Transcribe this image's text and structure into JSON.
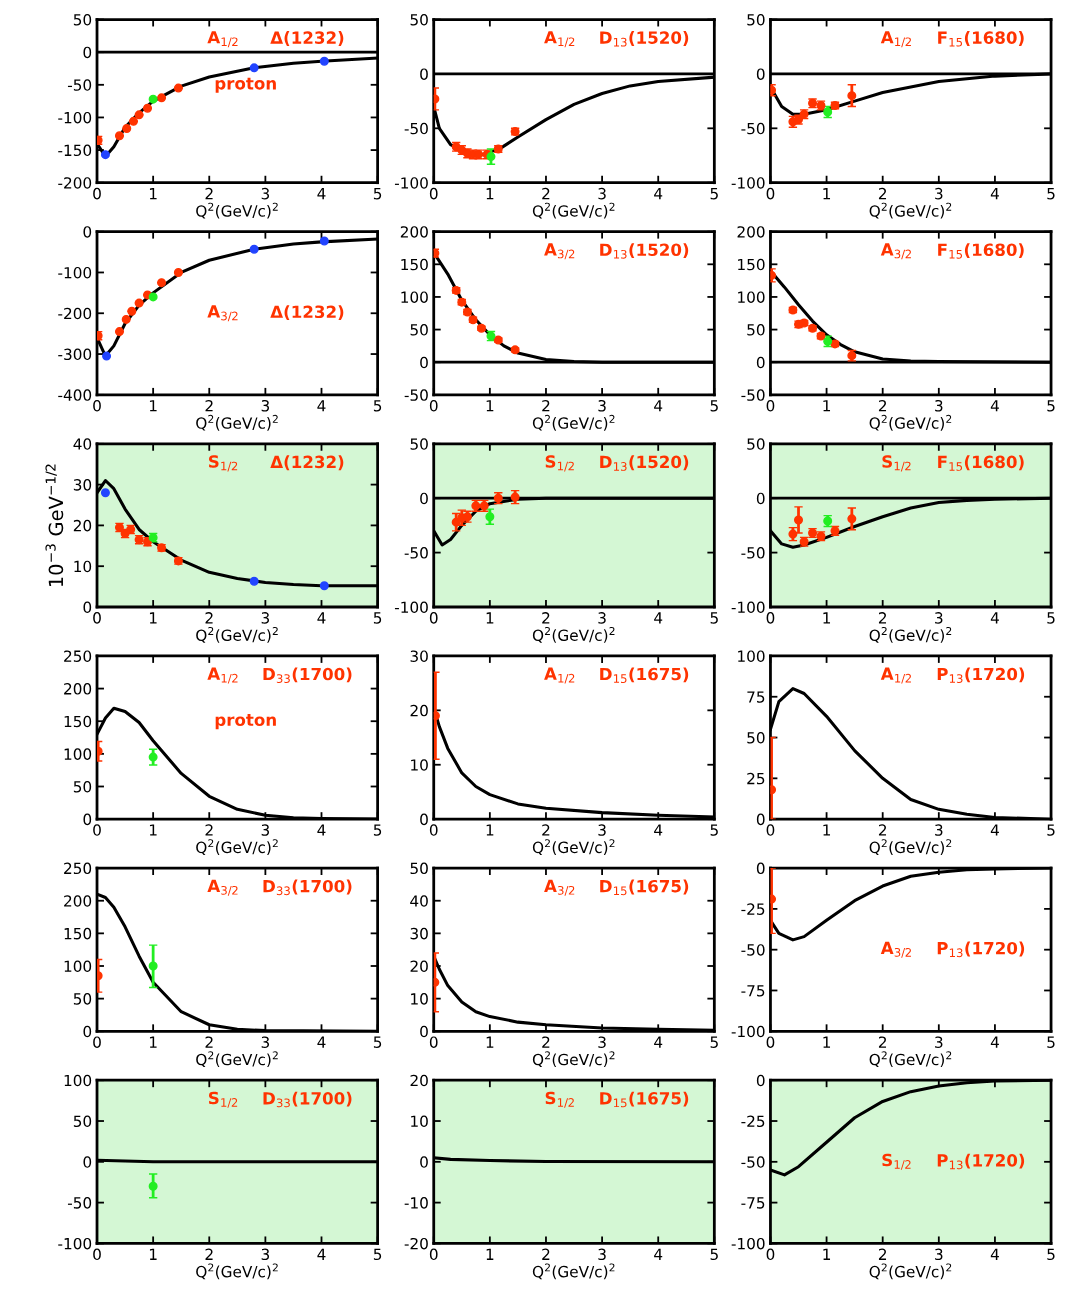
{
  "chart_data": [
    {
      "type": "line",
      "xlabel": "Q$^{2}$(GeV/c)$^{2}$",
      "xlim": [
        0,
        5
      ],
      "xticks": [
        0,
        1,
        2,
        3,
        4,
        5
      ],
      "ylim": [
        -200,
        50
      ],
      "yticks": [
        -200,
        -150,
        -100,
        -50,
        0,
        50
      ],
      "annotations": [
        "A$_{1/2}$",
        "Δ(1232)",
        "proton"
      ],
      "ref_lines": [
        {
          "axis": "y",
          "value": 0,
          "color": "#000000"
        }
      ],
      "series": [
        {
          "type": "line",
          "color": "#000000",
          "x": [
            0,
            0.15,
            0.3,
            0.5,
            0.75,
            1,
            1.5,
            2,
            2.8,
            3.5,
            4,
            5
          ],
          "values": [
            -140,
            -160,
            -145,
            -115,
            -93,
            -75,
            -52,
            -38,
            -24,
            -17,
            -14,
            -9
          ]
        },
        {
          "type": "scatter",
          "color": "#ff3300",
          "x": [
            0.02,
            0.4,
            0.53,
            0.65,
            0.75,
            0.9,
            1.15,
            1.45
          ],
          "values": [
            -135,
            -128,
            -117,
            -106,
            -96,
            -86,
            -70,
            -55
          ],
          "errors": [
            6,
            null,
            null,
            null,
            null,
            null,
            null,
            null
          ]
        },
        {
          "type": "scatter",
          "color": "#22ee22",
          "x": [
            1.0
          ],
          "values": [
            -72
          ]
        },
        {
          "type": "scatter",
          "color": "#2244ff",
          "x": [
            0.15,
            2.8,
            4.05
          ],
          "values": [
            -157,
            -24,
            -14
          ]
        }
      ]
    },
    {
      "type": "line",
      "xlabel": "Q$^{2}$(GeV/c)$^{2}$",
      "xlim": [
        0,
        5
      ],
      "xticks": [
        0,
        1,
        2,
        3,
        4,
        5
      ],
      "ylim": [
        -100,
        50
      ],
      "yticks": [
        -100,
        -50,
        0,
        50
      ],
      "annotations": [
        "A$_{1/2}$",
        "D$_{13}$(1520)"
      ],
      "ref_lines": [
        {
          "axis": "y",
          "value": 0,
          "color": "#000000"
        }
      ],
      "series": [
        {
          "type": "line",
          "color": "#000000",
          "x": [
            0,
            0.1,
            0.3,
            0.6,
            0.9,
            1.2,
            1.5,
            2,
            2.5,
            3,
            3.5,
            4,
            5
          ],
          "values": [
            -30,
            -50,
            -65,
            -73,
            -74,
            -68,
            -58,
            -42,
            -28,
            -18,
            -11,
            -7,
            -3
          ]
        },
        {
          "type": "scatter",
          "color": "#ff3300",
          "x": [
            0.02,
            0.4,
            0.5,
            0.6,
            0.7,
            0.8,
            0.95,
            1.15,
            1.45
          ],
          "values": [
            -23,
            -67,
            -70,
            -73,
            -74,
            -74,
            -74,
            -69,
            -53
          ],
          "errors": [
            10,
            4,
            4,
            4,
            4,
            4,
            4,
            3,
            3
          ]
        },
        {
          "type": "scatter",
          "color": "#22ee22",
          "x": [
            1.02
          ],
          "values": [
            -76
          ],
          "errors": [
            7
          ]
        }
      ]
    },
    {
      "type": "line",
      "xlabel": "Q$^{2}$(GeV/c)$^{2}$",
      "xlim": [
        0,
        5
      ],
      "xticks": [
        0,
        1,
        2,
        3,
        4,
        5
      ],
      "ylim": [
        -100,
        50
      ],
      "yticks": [
        -100,
        -50,
        0,
        50
      ],
      "annotations": [
        "A$_{1/2}$",
        "F$_{15}$(1680)"
      ],
      "ref_lines": [
        {
          "axis": "y",
          "value": 0,
          "color": "#000000"
        }
      ],
      "series": [
        {
          "type": "line",
          "color": "#000000",
          "x": [
            0,
            0.2,
            0.4,
            0.6,
            1,
            1.5,
            2,
            3,
            4,
            5
          ],
          "values": [
            -12,
            -30,
            -37,
            -37,
            -33,
            -25,
            -17,
            -7,
            -2,
            0
          ]
        },
        {
          "type": "scatter",
          "color": "#ff3300",
          "x": [
            0.02,
            0.4,
            0.5,
            0.6,
            0.75,
            0.9,
            1.15,
            1.45
          ],
          "values": [
            -15,
            -44,
            -42,
            -37,
            -27,
            -29,
            -29,
            -20
          ],
          "errors": [
            5,
            5,
            4,
            4,
            4,
            4,
            3,
            10
          ]
        },
        {
          "type": "scatter",
          "color": "#22ee22",
          "x": [
            1.02
          ],
          "values": [
            -35
          ],
          "errors": [
            5
          ]
        }
      ]
    },
    {
      "type": "line",
      "xlabel": "Q$^{2}$(GeV/c)$^{2}$",
      "xlim": [
        0,
        5
      ],
      "xticks": [
        0,
        1,
        2,
        3,
        4,
        5
      ],
      "ylim": [
        -400,
        0
      ],
      "yticks": [
        -400,
        -300,
        -200,
        -100,
        0
      ],
      "annotations": [
        "A$_{3/2}$",
        "Δ(1232)"
      ],
      "series": [
        {
          "type": "line",
          "color": "#000000",
          "x": [
            0,
            0.15,
            0.3,
            0.5,
            0.75,
            1,
            1.5,
            2,
            2.8,
            3.5,
            4,
            5
          ],
          "values": [
            -260,
            -305,
            -280,
            -225,
            -180,
            -150,
            -100,
            -70,
            -43,
            -30,
            -25,
            -18
          ]
        },
        {
          "type": "scatter",
          "color": "#ff3300",
          "x": [
            0.02,
            0.4,
            0.52,
            0.62,
            0.75,
            0.9,
            1.15,
            1.45
          ],
          "values": [
            -255,
            -245,
            -215,
            -195,
            -175,
            -155,
            -125,
            -100
          ],
          "errors": [
            10,
            null,
            null,
            null,
            null,
            null,
            null,
            null
          ]
        },
        {
          "type": "scatter",
          "color": "#22ee22",
          "x": [
            1.0
          ],
          "values": [
            -160
          ]
        },
        {
          "type": "scatter",
          "color": "#2244ff",
          "x": [
            0.17,
            2.8,
            4.05
          ],
          "values": [
            -305,
            -43,
            -23
          ]
        }
      ]
    },
    {
      "type": "line",
      "xlabel": "Q$^{2}$(GeV/c)$^{2}$",
      "xlim": [
        0,
        5
      ],
      "xticks": [
        0,
        1,
        2,
        3,
        4,
        5
      ],
      "ylim": [
        -50,
        200
      ],
      "yticks": [
        -50,
        0,
        50,
        100,
        150,
        200
      ],
      "annotations": [
        "A$_{3/2}$",
        "D$_{13}$(1520)"
      ],
      "ref_lines": [
        {
          "axis": "y",
          "value": 0,
          "color": "#000000"
        }
      ],
      "series": [
        {
          "type": "line",
          "color": "#000000",
          "x": [
            0,
            0.25,
            0.5,
            0.75,
            1,
            1.25,
            1.5,
            2,
            2.5,
            3,
            5
          ],
          "values": [
            168,
            135,
            95,
            65,
            42,
            25,
            14,
            4,
            1,
            0,
            0
          ]
        },
        {
          "type": "scatter",
          "color": "#ff3300",
          "x": [
            0.02,
            0.4,
            0.5,
            0.6,
            0.7,
            0.85,
            1.15,
            1.45
          ],
          "values": [
            167,
            110,
            92,
            77,
            65,
            52,
            34,
            19
          ],
          "errors": [
            6,
            4,
            4,
            4,
            4,
            3,
            3,
            3
          ]
        },
        {
          "type": "scatter",
          "color": "#22ee22",
          "x": [
            1.02
          ],
          "values": [
            40
          ],
          "errors": [
            7
          ]
        }
      ]
    },
    {
      "type": "line",
      "xlabel": "Q$^{2}$(GeV/c)$^{2}$",
      "xlim": [
        0,
        5
      ],
      "xticks": [
        0,
        1,
        2,
        3,
        4,
        5
      ],
      "ylim": [
        -50,
        200
      ],
      "yticks": [
        -50,
        0,
        50,
        100,
        150,
        200
      ],
      "annotations": [
        "A$_{3/2}$",
        "F$_{15}$(1680)"
      ],
      "ref_lines": [
        {
          "axis": "y",
          "value": 0,
          "color": "#000000"
        }
      ],
      "series": [
        {
          "type": "line",
          "color": "#000000",
          "x": [
            0,
            0.25,
            0.5,
            0.75,
            1,
            1.25,
            1.5,
            2,
            2.5,
            3,
            5
          ],
          "values": [
            140,
            115,
            88,
            63,
            42,
            27,
            16,
            5,
            2,
            1,
            0
          ]
        },
        {
          "type": "scatter",
          "color": "#ff3300",
          "x": [
            0.02,
            0.4,
            0.5,
            0.6,
            0.75,
            0.9,
            1.15,
            1.45
          ],
          "values": [
            133,
            80,
            58,
            60,
            52,
            40,
            28,
            10
          ],
          "errors": [
            10,
            4,
            5,
            4,
            4,
            4,
            4,
            8
          ]
        },
        {
          "type": "scatter",
          "color": "#22ee22",
          "x": [
            1.02
          ],
          "values": [
            32
          ],
          "errors": [
            8
          ]
        }
      ]
    },
    {
      "type": "line",
      "xlabel": "Q$^{2}$(GeV/c)$^{2}$",
      "ylabel": "10$^{−3}$ GeV$^{−1/2}$",
      "xlim": [
        0,
        5
      ],
      "xticks": [
        0,
        1,
        2,
        3,
        4,
        5
      ],
      "ylim": [
        0,
        40
      ],
      "yticks": [
        0,
        10,
        20,
        30,
        40
      ],
      "annotations": [
        "S$_{1/2}$",
        "Δ(1232)"
      ],
      "bands": [
        {
          "axis": "y",
          "from": 0,
          "to": 40,
          "color": "#d4f7d4"
        }
      ],
      "series": [
        {
          "type": "line",
          "color": "#000000",
          "x": [
            0,
            0.15,
            0.3,
            0.5,
            0.75,
            1,
            1.5,
            2,
            2.5,
            3,
            3.5,
            4,
            5
          ],
          "values": [
            28,
            31,
            29,
            24,
            19,
            16,
            11.5,
            8.5,
            7,
            6,
            5.5,
            5.2,
            5.2
          ]
        },
        {
          "type": "scatter",
          "color": "#ff3300",
          "x": [
            0.4,
            0.5,
            0.6,
            0.75,
            0.9,
            1.15,
            1.45
          ],
          "values": [
            19.5,
            18,
            19,
            16.5,
            16,
            14.5,
            11.3
          ],
          "errors": [
            1,
            1,
            1,
            1,
            1,
            0.8,
            0.8
          ]
        },
        {
          "type": "scatter",
          "color": "#22ee22",
          "x": [
            1.0
          ],
          "values": [
            17
          ],
          "errors": [
            1
          ]
        },
        {
          "type": "scatter",
          "color": "#2244ff",
          "x": [
            0.15,
            2.8,
            4.05
          ],
          "values": [
            28,
            6.3,
            5.2
          ]
        }
      ]
    },
    {
      "type": "line",
      "xlabel": "Q$^{2}$(GeV/c)$^{2}$",
      "xlim": [
        0,
        5
      ],
      "xticks": [
        0,
        1,
        2,
        3,
        4,
        5
      ],
      "ylim": [
        -100,
        50
      ],
      "yticks": [
        -100,
        -50,
        0,
        50
      ],
      "annotations": [
        "S$_{1/2}$",
        "D$_{13}$(1520)"
      ],
      "bands": [
        {
          "axis": "y",
          "from": -100,
          "to": 50,
          "color": "#d4f7d4"
        }
      ],
      "ref_lines": [
        {
          "axis": "y",
          "value": 0,
          "color": "#000000"
        }
      ],
      "series": [
        {
          "type": "line",
          "color": "#000000",
          "x": [
            0,
            0.15,
            0.3,
            0.5,
            0.75,
            1,
            1.5,
            2,
            5
          ],
          "values": [
            -30,
            -43,
            -38,
            -25,
            -12,
            -5,
            -1,
            0,
            0
          ]
        },
        {
          "type": "scatter",
          "color": "#ff3300",
          "x": [
            0.4,
            0.5,
            0.6,
            0.75,
            0.9,
            1.15,
            1.45
          ],
          "values": [
            -22,
            -18,
            -17,
            -7,
            -7,
            0,
            1
          ],
          "errors": [
            8,
            7,
            5,
            5,
            5,
            5,
            6
          ]
        },
        {
          "type": "scatter",
          "color": "#22ee22",
          "x": [
            1.0
          ],
          "values": [
            -17
          ],
          "errors": [
            7
          ]
        }
      ]
    },
    {
      "type": "line",
      "xlabel": "Q$^{2}$(GeV/c)$^{2}$",
      "xlim": [
        0,
        5
      ],
      "xticks": [
        0,
        1,
        2,
        3,
        4,
        5
      ],
      "ylim": [
        -100,
        50
      ],
      "yticks": [
        -100,
        -50,
        0,
        50
      ],
      "annotations": [
        "S$_{1/2}$",
        "F$_{15}$(1680)"
      ],
      "bands": [
        {
          "axis": "y",
          "from": -100,
          "to": 50,
          "color": "#d4f7d4"
        }
      ],
      "ref_lines": [
        {
          "axis": "y",
          "value": 0,
          "color": "#000000"
        }
      ],
      "series": [
        {
          "type": "line",
          "color": "#000000",
          "x": [
            0,
            0.2,
            0.4,
            0.6,
            1,
            1.5,
            2,
            2.5,
            3,
            3.5,
            4,
            5
          ],
          "values": [
            -30,
            -42,
            -45,
            -43,
            -36,
            -26,
            -17,
            -9,
            -4,
            -2,
            -1,
            0
          ]
        },
        {
          "type": "scatter",
          "color": "#ff3300",
          "x": [
            0.4,
            0.5,
            0.6,
            0.75,
            0.9,
            1.15,
            1.45
          ],
          "values": [
            -33,
            -20,
            -40,
            -32,
            -35,
            -30,
            -19
          ],
          "errors": [
            6,
            12,
            4,
            4,
            4,
            4,
            10
          ]
        },
        {
          "type": "scatter",
          "color": "#22ee22",
          "x": [
            1.02
          ],
          "values": [
            -21
          ],
          "errors": [
            5
          ]
        }
      ]
    },
    {
      "type": "line",
      "xlabel": "Q$^{2}$(GeV/c)$^{2}$",
      "xlim": [
        0,
        5
      ],
      "xticks": [
        0,
        1,
        2,
        3,
        4,
        5
      ],
      "ylim": [
        0,
        250
      ],
      "yticks": [
        0,
        50,
        100,
        150,
        200,
        250
      ],
      "annotations": [
        "A$_{1/2}$",
        "D$_{33}$(1700)",
        "proton"
      ],
      "series": [
        {
          "type": "line",
          "color": "#000000",
          "x": [
            0,
            0.15,
            0.3,
            0.5,
            0.75,
            1,
            1.5,
            2,
            2.5,
            3,
            3.5,
            4,
            5
          ],
          "values": [
            130,
            155,
            170,
            165,
            148,
            120,
            70,
            35,
            15,
            6,
            2,
            1,
            0
          ]
        },
        {
          "type": "scatter",
          "color": "#ff3300",
          "x": [
            0.02
          ],
          "values": [
            104
          ],
          "errors": [
            15
          ]
        },
        {
          "type": "scatter",
          "color": "#22ee22",
          "x": [
            1.0
          ],
          "values": [
            95
          ],
          "errors": [
            12
          ]
        }
      ]
    },
    {
      "type": "line",
      "xlabel": "Q$^{2}$(GeV/c)$^{2}$",
      "xlim": [
        0,
        5
      ],
      "xticks": [
        0,
        1,
        2,
        3,
        4,
        5
      ],
      "ylim": [
        0,
        30
      ],
      "yticks": [
        0,
        10,
        20,
        30
      ],
      "annotations": [
        "A$_{1/2}$",
        "D$_{15}$(1675)"
      ],
      "series": [
        {
          "type": "line",
          "color": "#000000",
          "x": [
            0,
            0.1,
            0.25,
            0.5,
            0.75,
            1,
            1.5,
            2,
            3,
            4,
            5
          ],
          "values": [
            20.5,
            17,
            13,
            8.5,
            6,
            4.5,
            2.8,
            2,
            1.2,
            0.7,
            0.4
          ]
        },
        {
          "type": "scatter",
          "color": "#ff3300",
          "x": [
            0.03
          ],
          "values": [
            19
          ],
          "errors": [
            8
          ]
        }
      ]
    },
    {
      "type": "line",
      "xlabel": "Q$^{2}$(GeV/c)$^{2}$",
      "xlim": [
        0,
        5
      ],
      "xticks": [
        0,
        1,
        2,
        3,
        4,
        5
      ],
      "ylim": [
        0,
        100
      ],
      "yticks": [
        0,
        25,
        50,
        75,
        100
      ],
      "annotations": [
        "A$_{1/2}$",
        "P$_{13}$(1720)"
      ],
      "series": [
        {
          "type": "line",
          "color": "#000000",
          "x": [
            0,
            0.15,
            0.4,
            0.6,
            1,
            1.5,
            2,
            2.5,
            3,
            3.5,
            4,
            5
          ],
          "values": [
            55,
            72,
            80,
            77,
            63,
            42,
            25,
            12,
            6,
            3,
            1,
            0
          ]
        },
        {
          "type": "scatter",
          "color": "#ff3300",
          "x": [
            0.02
          ],
          "values": [
            18
          ],
          "errors": [
            [
              0,
              50
            ]
          ]
        }
      ]
    },
    {
      "type": "line",
      "xlabel": "Q$^{2}$(GeV/c)$^{2}$",
      "xlim": [
        0,
        5
      ],
      "xticks": [
        0,
        1,
        2,
        3,
        4,
        5
      ],
      "ylim": [
        0,
        250
      ],
      "yticks": [
        0,
        50,
        100,
        150,
        200,
        250
      ],
      "annotations": [
        "A$_{3/2}$",
        "D$_{33}$(1700)"
      ],
      "series": [
        {
          "type": "line",
          "color": "#000000",
          "x": [
            0,
            0.15,
            0.3,
            0.5,
            0.75,
            1,
            1.5,
            2,
            2.5,
            3,
            5
          ],
          "values": [
            210,
            205,
            190,
            160,
            115,
            75,
            30,
            10,
            3,
            1,
            0
          ]
        },
        {
          "type": "scatter",
          "color": "#ff3300",
          "x": [
            0.02
          ],
          "values": [
            85
          ],
          "errors": [
            [
              60,
              110
            ]
          ]
        },
        {
          "type": "scatter",
          "color": "#22ee22",
          "x": [
            1.0
          ],
          "values": [
            100
          ],
          "errors": [
            [
              67,
              132
            ]
          ]
        }
      ]
    },
    {
      "type": "line",
      "xlabel": "Q$^{2}$(GeV/c)$^{2}$",
      "xlim": [
        0,
        5
      ],
      "xticks": [
        0,
        1,
        2,
        3,
        4,
        5
      ],
      "ylim": [
        0,
        50
      ],
      "yticks": [
        0,
        10,
        20,
        30,
        40,
        50
      ],
      "annotations": [
        "A$_{3/2}$",
        "D$_{15}$(1675)"
      ],
      "series": [
        {
          "type": "line",
          "color": "#000000",
          "x": [
            0,
            0.1,
            0.25,
            0.5,
            0.75,
            1,
            1.5,
            2,
            3,
            4,
            5
          ],
          "values": [
            23,
            19,
            14,
            9,
            6,
            4.5,
            2.8,
            2,
            1,
            0.6,
            0.3
          ]
        },
        {
          "type": "scatter",
          "color": "#ff3300",
          "x": [
            0.02
          ],
          "values": [
            15
          ],
          "errors": [
            [
              6,
              24
            ]
          ]
        }
      ]
    },
    {
      "type": "line",
      "xlabel": "Q$^{2}$(GeV/c)$^{2}$",
      "xlim": [
        0,
        5
      ],
      "xticks": [
        0,
        1,
        2,
        3,
        4,
        5
      ],
      "ylim": [
        -100,
        0
      ],
      "yticks": [
        -100,
        -75,
        -50,
        -25,
        0
      ],
      "annotations": [
        "A$_{3/2}$",
        "P$_{13}$(1720)"
      ],
      "series": [
        {
          "type": "line",
          "color": "#000000",
          "x": [
            0,
            0.15,
            0.4,
            0.6,
            1,
            1.5,
            2,
            2.5,
            3,
            3.5,
            4,
            5
          ],
          "values": [
            -32,
            -40,
            -44,
            -42,
            -32,
            -20,
            -11,
            -5,
            -2.5,
            -1,
            -0.5,
            0
          ]
        },
        {
          "type": "scatter",
          "color": "#ff3300",
          "x": [
            0.02
          ],
          "values": [
            -19
          ],
          "errors": [
            [
              -40,
              0
            ]
          ]
        }
      ]
    },
    {
      "type": "line",
      "xlabel": "Q$^{2}$(GeV/c)$^{2}$",
      "xlim": [
        0,
        5
      ],
      "xticks": [
        0,
        1,
        2,
        3,
        4,
        5
      ],
      "ylim": [
        -100,
        100
      ],
      "yticks": [
        -100,
        -50,
        0,
        50,
        100
      ],
      "annotations": [
        "S$_{1/2}$",
        "D$_{33}$(1700)"
      ],
      "bands": [
        {
          "axis": "y",
          "from": -100,
          "to": 100,
          "color": "#d4f7d4"
        }
      ],
      "series": [
        {
          "type": "line",
          "color": "#000000",
          "x": [
            0,
            0.5,
            1,
            5
          ],
          "values": [
            2,
            1,
            0,
            0
          ]
        },
        {
          "type": "scatter",
          "color": "#22ee22",
          "x": [
            1.0
          ],
          "values": [
            -30
          ],
          "errors": [
            [
              -44,
              -15
            ]
          ]
        }
      ]
    },
    {
      "type": "line",
      "xlabel": "Q$^{2}$(GeV/c)$^{2}$",
      "xlim": [
        0,
        5
      ],
      "xticks": [
        0,
        1,
        2,
        3,
        4,
        5
      ],
      "ylim": [
        -20,
        20
      ],
      "yticks": [
        -20,
        -10,
        0,
        10,
        20
      ],
      "annotations": [
        "S$_{1/2}$",
        "D$_{15}$(1675)"
      ],
      "bands": [
        {
          "axis": "y",
          "from": -20,
          "to": 20,
          "color": "#d4f7d4"
        }
      ],
      "series": [
        {
          "type": "line",
          "color": "#000000",
          "x": [
            0,
            0.3,
            1,
            2,
            5
          ],
          "values": [
            1,
            0.6,
            0.3,
            0.1,
            0
          ]
        }
      ]
    },
    {
      "type": "line",
      "xlabel": "Q$^{2}$(GeV/c)$^{2}$",
      "xlim": [
        0,
        5
      ],
      "xticks": [
        0,
        1,
        2,
        3,
        4,
        5
      ],
      "ylim": [
        -100,
        0
      ],
      "yticks": [
        -100,
        -75,
        -50,
        -25,
        0
      ],
      "annotations": [
        "S$_{1/2}$",
        "P$_{13}$(1720)"
      ],
      "bands": [
        {
          "axis": "y",
          "from": -100,
          "to": 0,
          "color": "#d4f7d4"
        }
      ],
      "series": [
        {
          "type": "line",
          "color": "#000000",
          "x": [
            0,
            0.25,
            0.5,
            1,
            1.5,
            2,
            2.5,
            3,
            3.5,
            4,
            5
          ],
          "values": [
            -55,
            -58,
            -53,
            -38,
            -23,
            -13,
            -7,
            -3.5,
            -1.5,
            -0.5,
            0
          ]
        }
      ]
    }
  ]
}
